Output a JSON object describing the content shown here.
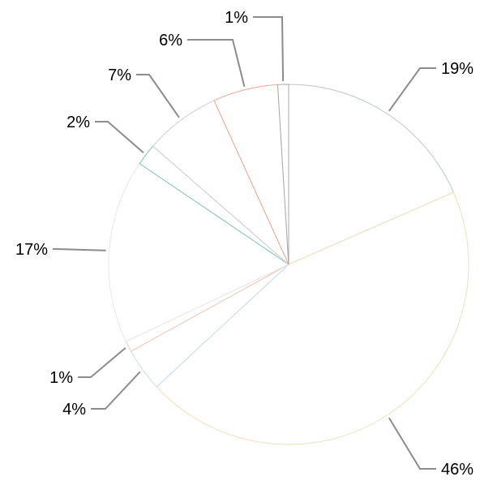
{
  "chart_data": {
    "type": "pie",
    "start_angle_deg": 0,
    "direction": "clockwise",
    "grid": false,
    "legend": "none",
    "slices": [
      {
        "value": 19,
        "label": "19%",
        "color": "#b9c4d8"
      },
      {
        "value": 46,
        "label": "46%",
        "color": "#f1dfb8"
      },
      {
        "value": 4,
        "label": "4%",
        "color": "#c2dcea"
      },
      {
        "value": 1,
        "label": "1%",
        "color": "#f0c8b6"
      },
      {
        "value": 17,
        "label": "17%",
        "color": "#e7e7e7"
      },
      {
        "value": 2,
        "label": "2%",
        "color": "#7fc2bc"
      },
      {
        "value": 7,
        "label": "7%",
        "color": "#cfcfcf"
      },
      {
        "value": 6,
        "label": "6%",
        "color": "#f0a58a"
      },
      {
        "value": 1,
        "label": "1%",
        "color": "#a9a9a9"
      }
    ],
    "leader_color": "#8c8c8c"
  }
}
